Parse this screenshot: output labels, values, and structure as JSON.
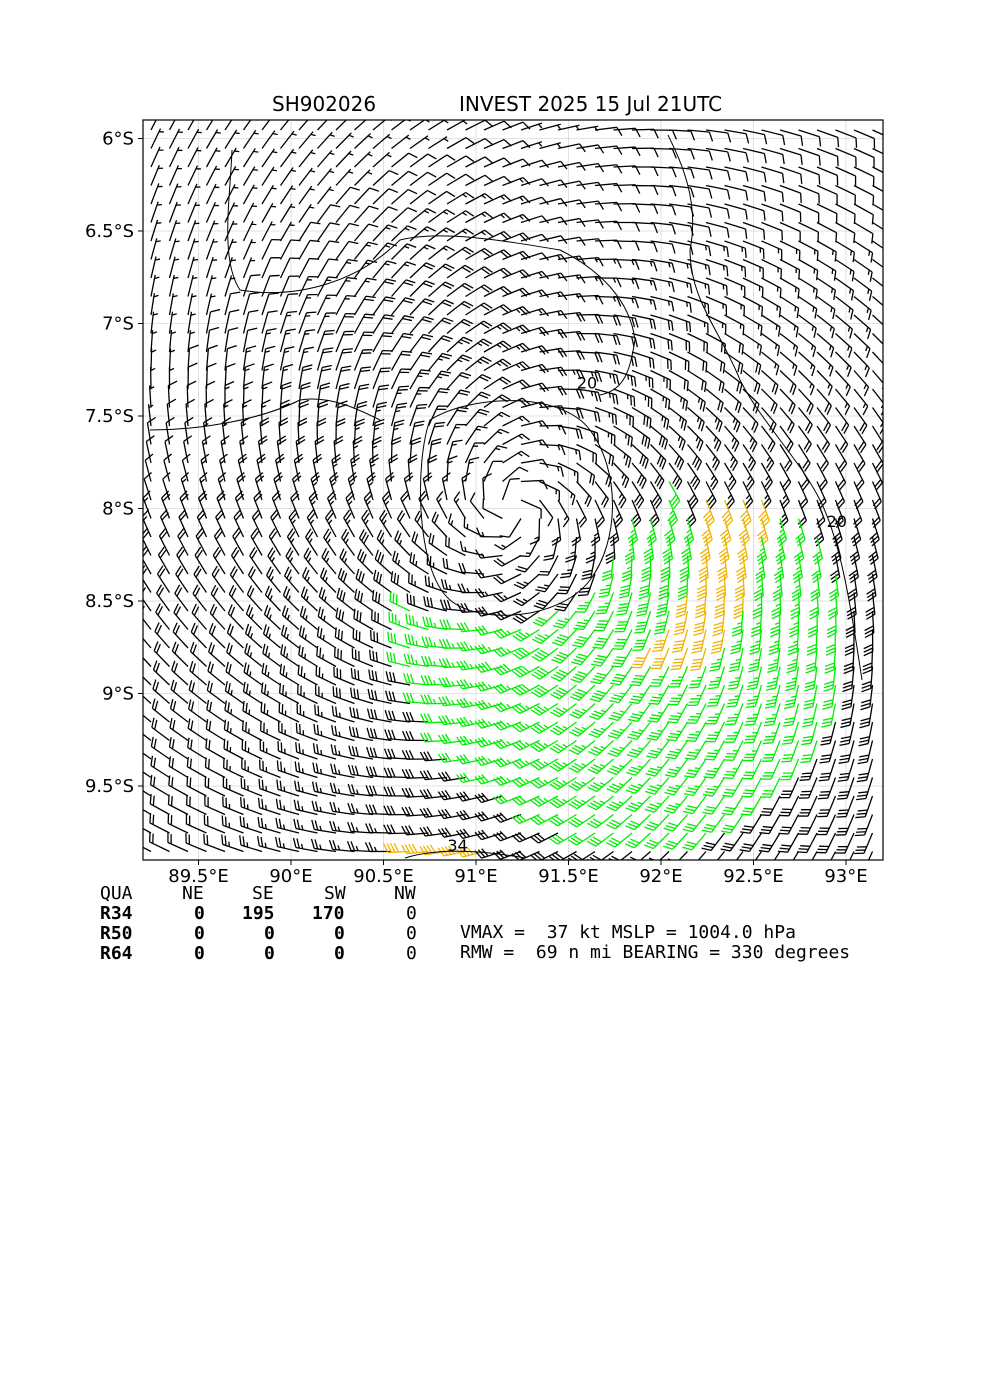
{
  "title": {
    "storm_id": "SH902026",
    "description": "INVEST 2025 15 Jul 21UTC"
  },
  "chart_data": {
    "type": "wind_barbs",
    "x_ticks": [
      "89.5°E",
      "90°E",
      "90.5°E",
      "91°E",
      "91.5°E",
      "92°E",
      "92.5°E",
      "93°E"
    ],
    "x_tick_values": [
      89.5,
      90.0,
      90.5,
      91.0,
      91.5,
      92.0,
      92.5,
      93.0
    ],
    "y_ticks": [
      "6°S",
      "6.5°S",
      "7°S",
      "7.5°S",
      "8°S",
      "8.5°S",
      "9°S",
      "9.5°S"
    ],
    "y_tick_values": [
      -6.0,
      -6.5,
      -7.0,
      -7.5,
      -8.0,
      -8.5,
      -9.0,
      -9.5
    ],
    "xlim": [
      89.2,
      93.2
    ],
    "ylim": [
      -9.9,
      -5.9
    ],
    "grid": true,
    "center": {
      "lon": 91.2,
      "lat": -8.0
    },
    "barb_colors": {
      "below_34kt": "#000000",
      "34_to_50kt": "#00ee00",
      "50kt_plus": "#f0b400"
    },
    "contour_labels": [
      {
        "text": "20",
        "lon": 91.6,
        "lat": -7.35
      },
      {
        "text": "20",
        "lon": 92.95,
        "lat": -8.1
      },
      {
        "text": "34",
        "lon": 90.9,
        "lat": -9.85
      }
    ]
  },
  "wind_radii": {
    "header": [
      "QUA",
      "NE",
      "SE",
      "SW",
      "NW"
    ],
    "rows": [
      {
        "label": "R34",
        "values": [
          "0",
          "195",
          "170",
          "0"
        ]
      },
      {
        "label": "R50",
        "values": [
          "0",
          "0",
          "0",
          "0"
        ]
      },
      {
        "label": "R64",
        "values": [
          "0",
          "0",
          "0",
          "0"
        ]
      }
    ]
  },
  "summary": {
    "line1": "VMAX =  37 kt MSLP = 1004.0 hPa",
    "line2": "RMW =  69 n mi BEARING = 330 degrees"
  }
}
